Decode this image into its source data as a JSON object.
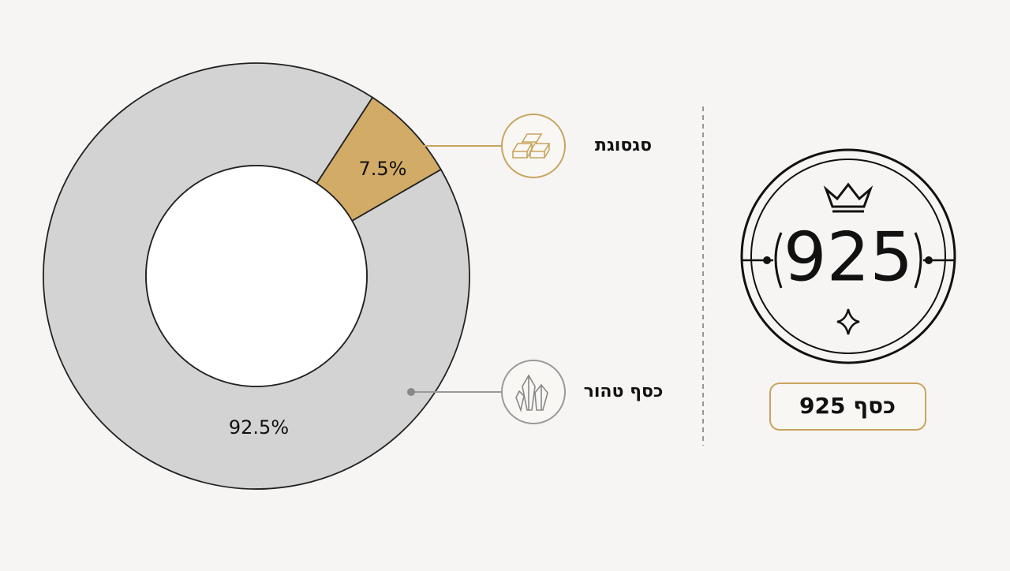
{
  "chart_data": {
    "type": "donut",
    "categories": [
      "סגסוגת",
      "כסף טהור"
    ],
    "values": [
      7.5,
      92.5
    ],
    "value_labels": [
      "7.5%",
      "92.5%"
    ],
    "colors": [
      "#d2ab67",
      "#d3d3d4"
    ]
  },
  "stamp": {
    "number": "925",
    "label": "כסף 925"
  }
}
